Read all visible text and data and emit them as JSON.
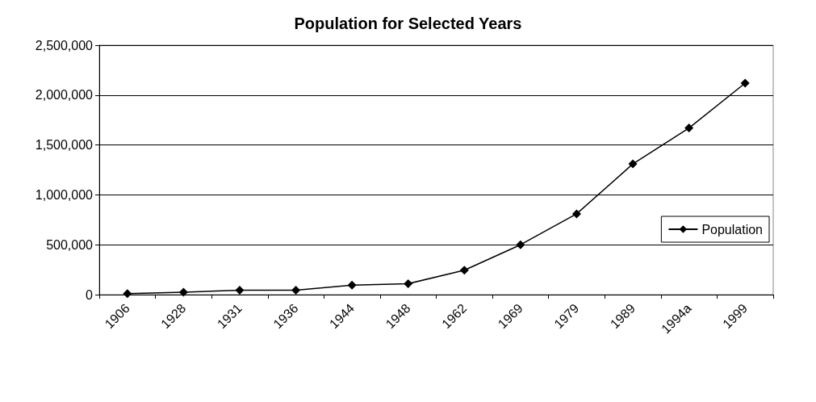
{
  "chart_data": {
    "type": "line",
    "title": "Population for Selected Years",
    "categories": [
      "1906",
      "1928",
      "1931",
      "1936",
      "1944",
      "1948",
      "1962",
      "1969",
      "1979",
      "1989",
      "1994a",
      "1999"
    ],
    "series": [
      {
        "name": "Population",
        "color": "#000000",
        "values": [
          10000,
          25000,
          45000,
          45000,
          95000,
          110000,
          245000,
          500000,
          810000,
          1310000,
          1670000,
          2120000
        ]
      }
    ],
    "ylim": [
      0,
      2500000
    ],
    "yticks": [
      {
        "value": 0,
        "label": "0"
      },
      {
        "value": 500000,
        "label": "500,000"
      },
      {
        "value": 1000000,
        "label": "1,000,000"
      },
      {
        "value": 1500000,
        "label": "1,500,000"
      },
      {
        "value": 2000000,
        "label": "2,000,000"
      },
      {
        "value": 2500000,
        "label": "2,500,000"
      }
    ],
    "grid": "y",
    "legend": "right",
    "marker": "diamond",
    "line_style": "solid"
  }
}
